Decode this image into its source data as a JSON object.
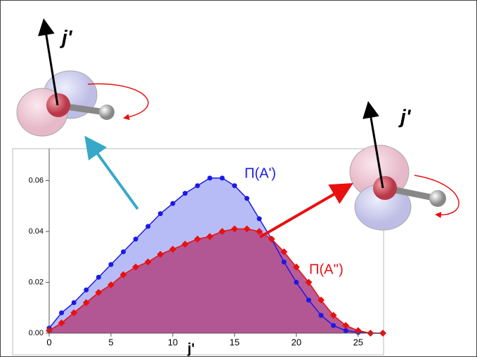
{
  "chart_data": {
    "type": "line",
    "x_label": "j'",
    "annotations": [
      "j'",
      "j'"
    ],
    "x": [
      0,
      1,
      2,
      3,
      4,
      5,
      6,
      7,
      8,
      9,
      10,
      11,
      12,
      13,
      14,
      15,
      16,
      17,
      18,
      19,
      20,
      21,
      22,
      23,
      24,
      25,
      26,
      27
    ],
    "series": [
      {
        "name": "Π(A')",
        "color": "#1a1ae6",
        "fill": "#aab0f4",
        "values": [
          0.002,
          0.008,
          0.012,
          0.017,
          0.022,
          0.027,
          0.032,
          0.037,
          0.042,
          0.047,
          0.051,
          0.055,
          0.058,
          0.061,
          0.061,
          0.058,
          0.053,
          0.045,
          0.037,
          0.028,
          0.02,
          0.013,
          0.007,
          0.003,
          0.001,
          0.0003,
          0,
          0
        ]
      },
      {
        "name": "Π(A'')",
        "color": "#e81010",
        "fill": "#b24a8a",
        "values": [
          0.001,
          0.004,
          0.008,
          0.012,
          0.016,
          0.019,
          0.023,
          0.026,
          0.028,
          0.031,
          0.033,
          0.035,
          0.037,
          0.038,
          0.04,
          0.041,
          0.041,
          0.04,
          0.037,
          0.032,
          0.026,
          0.02,
          0.013,
          0.007,
          0.003,
          0.001,
          0,
          0
        ]
      }
    ],
    "xlim": [
      0,
      27
    ],
    "ylim": [
      0,
      0.072
    ],
    "xticks": [
      0,
      5,
      10,
      15,
      20,
      25
    ],
    "yticks": [
      {
        "value": 0,
        "label": "0.00"
      },
      {
        "value": 0.02,
        "label": "0.02"
      },
      {
        "value": 0.04,
        "label": "0.04"
      },
      {
        "value": 0.06,
        "label": "0.06"
      }
    ]
  }
}
